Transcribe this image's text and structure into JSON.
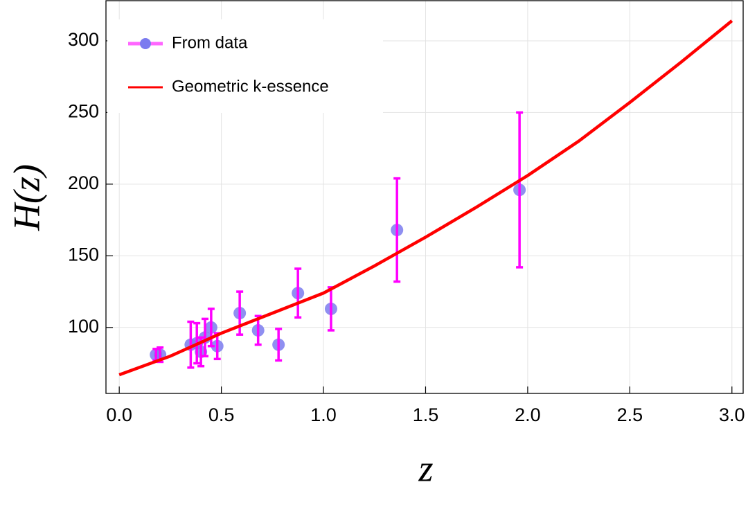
{
  "chart_data": {
    "type": "scatter",
    "x_label": "z",
    "y_label": "H(z)",
    "xlim": [
      -0.065,
      3.055
    ],
    "ylim": [
      54,
      328
    ],
    "xticks": [
      {
        "value": 0,
        "label": "0.0"
      },
      0.5,
      {
        "value": 1,
        "label": "1.0"
      },
      1.5,
      {
        "value": 2,
        "label": "2.0"
      },
      2.5,
      {
        "value": 3,
        "label": "3.0"
      }
    ],
    "yticks": [
      100,
      150,
      200,
      250,
      300
    ],
    "grid": true,
    "legend": "upper left",
    "series": [
      {
        "name": "From data",
        "type": "errorbar",
        "color": "#7b7bef",
        "error_color": "#ff00ff",
        "x": [
          0.18,
          0.2,
          0.35,
          0.38,
          0.4,
          0.42,
          0.45,
          0.48,
          0.59,
          0.68,
          0.78,
          0.875,
          1.037,
          1.36,
          1.96
        ],
        "values": [
          81,
          81,
          88,
          89,
          83,
          93,
          100,
          87,
          110,
          98,
          88,
          124,
          113,
          168,
          196
        ],
        "errors": [
          4,
          5,
          16,
          14,
          10,
          13,
          13,
          9,
          15,
          10,
          11,
          17,
          15,
          36,
          54
        ]
      },
      {
        "name": "Geometric k-essence",
        "type": "line",
        "color": "#ff0000",
        "x": [
          0,
          0.25,
          0.5,
          0.75,
          1,
          1.25,
          1.5,
          1.75,
          2,
          2.25,
          2.5,
          2.75,
          3
        ],
        "values": [
          67,
          80,
          96,
          110,
          124,
          143,
          163,
          184,
          206,
          230,
          257,
          285,
          314
        ]
      }
    ]
  }
}
